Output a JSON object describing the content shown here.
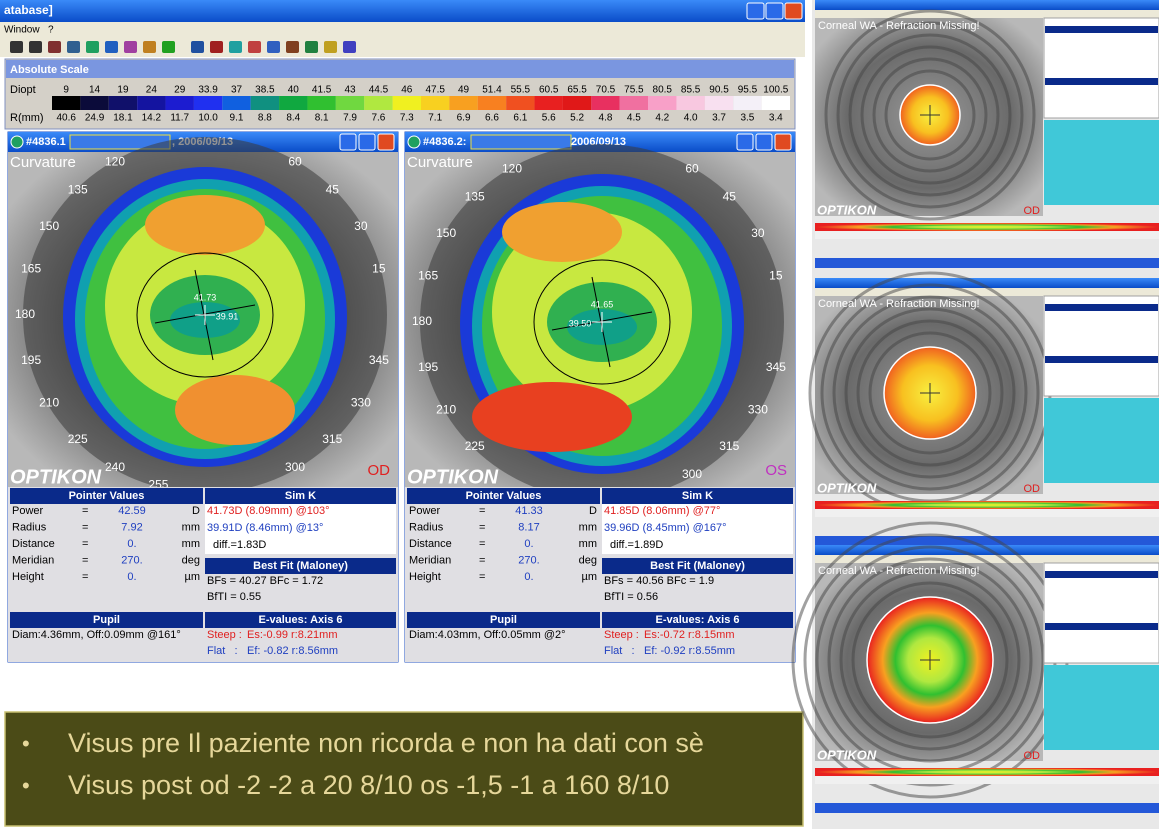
{
  "window": {
    "title": "atabase]",
    "menu": [
      "Window",
      "?"
    ]
  },
  "scale": {
    "title": "Absolute Scale",
    "row_labels": [
      "Diopt",
      "R(mm)"
    ],
    "diopt": [
      "9",
      "14",
      "19",
      "24",
      "29",
      "33.9",
      "37",
      "38.5",
      "40",
      "41.5",
      "43",
      "44.5",
      "46",
      "47.5",
      "49",
      "51.4",
      "55.5",
      "60.5",
      "65.5",
      "70.5",
      "75.5",
      "80.5",
      "85.5",
      "90.5",
      "95.5",
      "100.5"
    ],
    "rmm": [
      "40.6",
      "24.9",
      "18.1",
      "14.2",
      "11.7",
      "10.0",
      "9.1",
      "8.8",
      "8.4",
      "8.1",
      "7.9",
      "7.6",
      "7.3",
      "7.1",
      "6.9",
      "6.6",
      "6.1",
      "5.6",
      "5.2",
      "4.8",
      "4.5",
      "4.2",
      "4.0",
      "3.7",
      "3.5",
      "3.4"
    ],
    "colors": [
      "#000000",
      "#0b0b3a",
      "#10106a",
      "#1414a0",
      "#1c1cd0",
      "#2030f0",
      "#1060e0",
      "#109080",
      "#10a840",
      "#30c030",
      "#70d840",
      "#b0e840",
      "#f0f020",
      "#f8d020",
      "#f8a020",
      "#f88020",
      "#f05020",
      "#e82020",
      "#e01818",
      "#e83060",
      "#f070a0",
      "#f8a0c8",
      "#f8c8e0",
      "#f8e0f0",
      "#f4f0f8",
      "#ffffff"
    ]
  },
  "panels": [
    {
      "id": "#4836.1",
      "date": ", 2006/09/13",
      "map_label": "Curvature",
      "eye": "OD",
      "brand": "OPTIKON",
      "map_values": [
        "41.73",
        "39.91"
      ],
      "degree_labels": [
        "120",
        "60",
        "135",
        "45",
        "150",
        "30",
        "165",
        "15",
        "180",
        "195",
        "345",
        "210",
        "330",
        "225",
        "315",
        "240",
        "300",
        "255"
      ],
      "pointer": {
        "title": "Pointer Values",
        "rows": [
          [
            "Power",
            "=",
            "42.59",
            "D"
          ],
          [
            "Radius",
            "=",
            "7.92",
            "mm"
          ],
          [
            "Distance",
            "=",
            "0.",
            "mm"
          ],
          [
            "Meridian",
            "=",
            "270.",
            "deg"
          ],
          [
            "Height",
            "=",
            "0.",
            "µm"
          ]
        ]
      },
      "simk": {
        "title": "Sim K",
        "lines": [
          "41.73D (8.09mm) @103°",
          "39.91D (8.46mm) @13°",
          "diff.=1.83D"
        ]
      },
      "bestfit": {
        "title": "Best Fit (Maloney)",
        "lines": [
          "BFs = 40.27 BFc = 1.72",
          "BfTI = 0.55"
        ]
      },
      "pupil": {
        "title": "Pupil",
        "text": "Diam:4.36mm, Off:0.09mm @161°"
      },
      "evalues": {
        "title": "E-values: Axis 6",
        "lines": [
          {
            "label": "Steep :",
            "text": "Es:-0.99 r:8.21mm"
          },
          {
            "label": "Flat   :",
            "text": "Ef: -0.82 r:8.56mm"
          }
        ]
      }
    },
    {
      "id": "#4836.2:",
      "date": "2006/09/13",
      "map_label": "Curvature",
      "eye": "OS",
      "brand": "OPTIKON",
      "map_values": [
        "41.65",
        "39.50"
      ],
      "degree_labels": [
        "120",
        "60",
        "135",
        "45",
        "150",
        "30",
        "165",
        "15",
        "180",
        "195",
        "345",
        "210",
        "330",
        "225",
        "315",
        "300"
      ],
      "pointer": {
        "title": "Pointer Values",
        "rows": [
          [
            "Power",
            "=",
            "41.33",
            "D"
          ],
          [
            "Radius",
            "=",
            "8.17",
            "mm"
          ],
          [
            "Distance",
            "=",
            "0.",
            "mm"
          ],
          [
            "Meridian",
            "=",
            "270.",
            "deg"
          ],
          [
            "Height",
            "=",
            "0.",
            "µm"
          ]
        ]
      },
      "simk": {
        "title": "Sim K",
        "lines": [
          "41.85D (8.06mm) @77°",
          "39.96D (8.45mm) @167°",
          "diff.=1.89D"
        ]
      },
      "bestfit": {
        "title": "Best Fit (Maloney)",
        "lines": [
          "BFs = 40.56 BFc = 1.9",
          "BfTI = 0.56"
        ]
      },
      "pupil": {
        "title": "Pupil",
        "text": "Diam:4.03mm, Off:0.05mm @2°"
      },
      "evalues": {
        "title": "E-values: Axis 6",
        "lines": [
          {
            "label": "Steep :",
            "text": "Es:-0.72 r:8.15mm"
          },
          {
            "label": "Flat   :",
            "text": "Ef: -0.92 r:8.55mm"
          }
        ]
      }
    }
  ],
  "bullets": [
    "Visus pre Il paziente non ricorda e non ha dati con sè",
    "Visus post od -2 -2 a 20 8/10 os -1,5 -1 a 160 8/10"
  ],
  "thumbnails": [
    {
      "title": "Corneal WA - Refraction Missing!",
      "eye": "OD",
      "brand": "OPTIKON"
    },
    {
      "title": "Corneal WA - Refraction Missing!",
      "eye": "OD",
      "brand": "OPTIKON"
    },
    {
      "title": "Corneal WA - Refraction Missing!",
      "eye": "OD",
      "brand": "OPTIKON"
    }
  ]
}
